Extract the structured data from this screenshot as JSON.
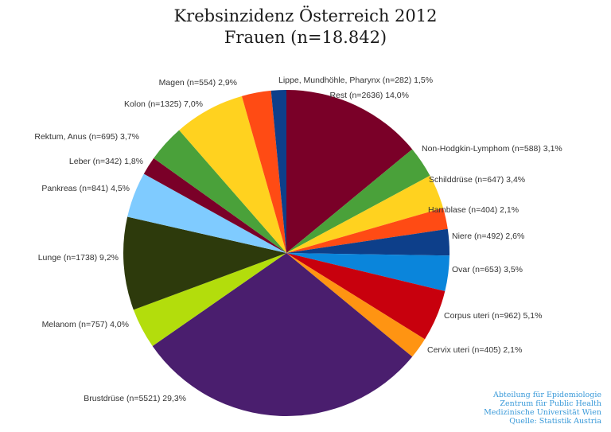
{
  "chart_data": {
    "type": "pie",
    "title": "Krebsinzidenz Österreich 2012",
    "subtitle": "Frauen (n=18.842)",
    "start_angle_deg": 0,
    "direction": "clockwise",
    "slices": [
      {
        "label": "Rest (n=2636) 14,0%",
        "value": 14.0,
        "count": 2636,
        "color": "#7a0028"
      },
      {
        "label": "Non-Hodgkin-Lymphom (n=588) 3,1%",
        "value": 3.1,
        "count": 588,
        "color": "#4aa13a"
      },
      {
        "label": "Schilddrüse (n=647) 3,4%",
        "value": 3.4,
        "count": 647,
        "color": "#ffd21f"
      },
      {
        "label": "Harnblase (n=404) 2,1%",
        "value": 2.1,
        "count": 404,
        "color": "#ff4b14"
      },
      {
        "label": "Niere (n=492) 2,6%",
        "value": 2.6,
        "count": 492,
        "color": "#0d3f8a"
      },
      {
        "label": "Ovar (n=653) 3,5%",
        "value": 3.5,
        "count": 653,
        "color": "#0a85db"
      },
      {
        "label": "Corpus uteri (n=962) 5,1%",
        "value": 5.1,
        "count": 962,
        "color": "#c8000d"
      },
      {
        "label": "Cervix uteri (n=405) 2,1%",
        "value": 2.1,
        "count": 405,
        "color": "#ff9412"
      },
      {
        "label": "Brustdrüse (n=5521) 29,3%",
        "value": 29.3,
        "count": 5521,
        "color": "#4a1e6e"
      },
      {
        "label": "Melanom (n=757) 4,0%",
        "value": 4.0,
        "count": 757,
        "color": "#b3dd0c"
      },
      {
        "label": "Lunge (n=1738) 9,2%",
        "value": 9.2,
        "count": 1738,
        "color": "#2d3a0c"
      },
      {
        "label": "Pankreas (n=841) 4,5%",
        "value": 4.5,
        "count": 841,
        "color": "#7fcbff"
      },
      {
        "label": "Leber (n=342) 1,8%",
        "value": 1.8,
        "count": 342,
        "color": "#7a0028"
      },
      {
        "label": "Rektum, Anus (n=695) 3,7%",
        "value": 3.7,
        "count": 695,
        "color": "#4aa13a"
      },
      {
        "label": "Kolon (n=1325) 7,0%",
        "value": 7.0,
        "count": 1325,
        "color": "#ffd21f"
      },
      {
        "label": "Magen (n=554) 2,9%",
        "value": 2.9,
        "count": 554,
        "color": "#ff4b14"
      },
      {
        "label": "Lippe, Mundhöhle, Pharynx (n=282) 1,5%",
        "value": 1.5,
        "count": 282,
        "color": "#0d3f8a"
      }
    ]
  },
  "credits": [
    "Abteilung für Epidemiologie",
    "Zentrum für Public Health",
    "Medizinische Universität Wien",
    "Quelle: Statistik Austria"
  ]
}
